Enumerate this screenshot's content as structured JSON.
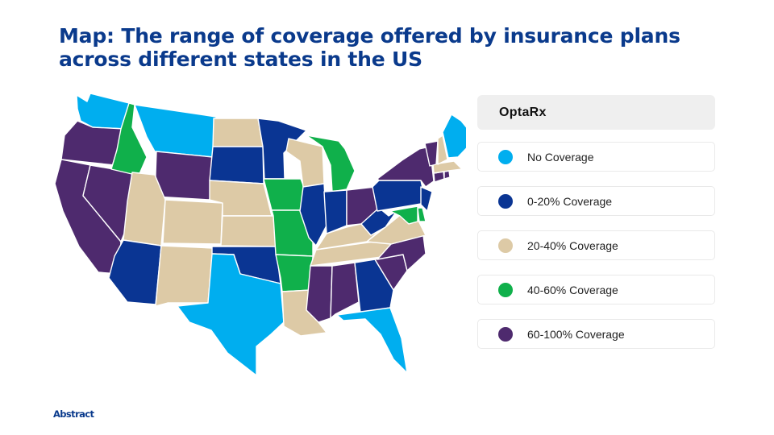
{
  "title": "Map: The range of coverage offered by insurance plans across different states in the US",
  "legend": {
    "header": "OptaRx",
    "items": [
      {
        "label": "No Coverage",
        "color": "#00aeef"
      },
      {
        "label": "0-20% Coverage",
        "color": "#0a3593"
      },
      {
        "label": "20-40% Coverage",
        "color": "#ddcaa6"
      },
      {
        "label": "40-60% Coverage",
        "color": "#10b04b"
      },
      {
        "label": "60-100% Coverage",
        "color": "#4e2a6e"
      }
    ]
  },
  "brand": "Abstract",
  "state_coverage": {
    "WA": "No Coverage",
    "OR": "60-100% Coverage",
    "CA": "60-100% Coverage",
    "NV": "60-100% Coverage",
    "ID": "40-60% Coverage",
    "MT": "No Coverage",
    "WY": "60-100% Coverage",
    "UT": "20-40% Coverage",
    "AZ": "0-20% Coverage",
    "CO": "20-40% Coverage",
    "NM": "20-40% Coverage",
    "ND": "20-40% Coverage",
    "SD": "0-20% Coverage",
    "NE": "20-40% Coverage",
    "KS": "20-40% Coverage",
    "OK": "0-20% Coverage",
    "TX": "No Coverage",
    "MN": "0-20% Coverage",
    "IA": "40-60% Coverage",
    "MO": "40-60% Coverage",
    "AR": "40-60% Coverage",
    "LA": "20-40% Coverage",
    "WI": "20-40% Coverage",
    "IL": "0-20% Coverage",
    "MI": "40-60% Coverage",
    "IN": "0-20% Coverage",
    "OH": "60-100% Coverage",
    "KY": "20-40% Coverage",
    "TN": "20-40% Coverage",
    "MS": "60-100% Coverage",
    "AL": "60-100% Coverage",
    "GA": "0-20% Coverage",
    "FL": "No Coverage",
    "SC": "60-100% Coverage",
    "NC": "60-100% Coverage",
    "VA": "20-40% Coverage",
    "WV": "0-20% Coverage",
    "PA": "0-20% Coverage",
    "NY": "60-100% Coverage",
    "NJ": "0-20% Coverage",
    "DE": "40-60% Coverage",
    "MD": "40-60% Coverage",
    "CT": "60-100% Coverage",
    "RI": "60-100% Coverage",
    "MA": "20-40% Coverage",
    "VT": "60-100% Coverage",
    "NH": "20-40% Coverage",
    "ME": "No Coverage"
  }
}
